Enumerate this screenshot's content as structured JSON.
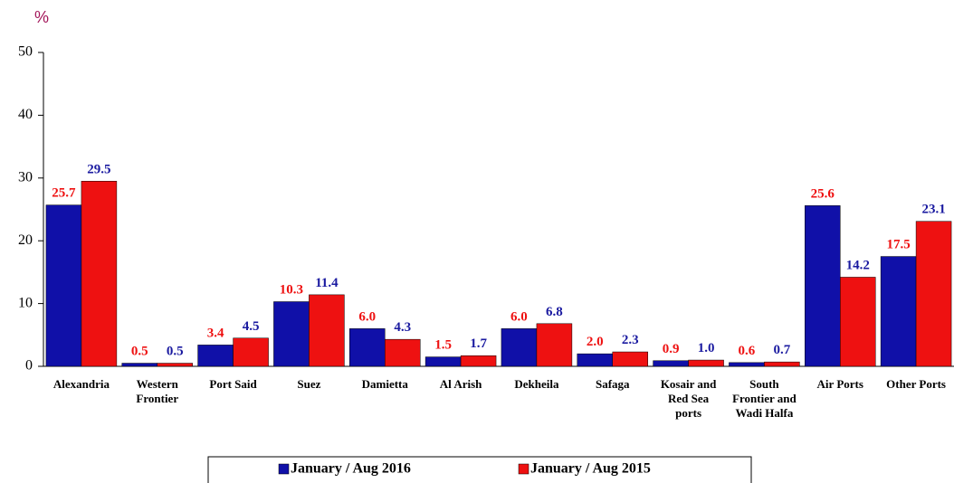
{
  "chart_data": {
    "type": "bar",
    "y_label": "%",
    "categories": [
      "Alexandria",
      "Western Frontier",
      "Port Said",
      "Suez",
      "Damietta",
      "Al Arish",
      "Dekheila",
      "Safaga",
      "Kosair and Red Sea ports",
      "South Frontier and Wadi Halfa",
      "Air Ports",
      "Other Ports"
    ],
    "series": [
      {
        "name": "January / Aug 2016",
        "color": "#1010a8",
        "label_color": "#ee1111",
        "values": [
          25.7,
          0.5,
          3.4,
          10.3,
          6.0,
          1.5,
          6.0,
          2.0,
          0.9,
          0.6,
          25.6,
          17.5
        ],
        "value_labels": [
          "25.7",
          "0.5",
          "3.4",
          "10.3",
          "6.0",
          "1.5",
          "6.0",
          "2.0",
          "0.9",
          "0.6",
          "25.6",
          "17.5"
        ]
      },
      {
        "name": "January / Aug 2015",
        "color": "#ee1111",
        "label_color": "#1a1aa0",
        "values": [
          29.5,
          0.5,
          4.5,
          11.4,
          4.3,
          1.7,
          6.8,
          2.3,
          1.0,
          0.7,
          14.2,
          23.1
        ],
        "value_labels": [
          "29.5",
          "0.5",
          "4.5",
          "11.4",
          "4.3",
          "1.7",
          "6.8",
          "2.3",
          "1.0",
          "0.7",
          "14.2",
          "23.1"
        ]
      }
    ],
    "ylim": [
      0,
      50
    ],
    "yticks": [
      0,
      10,
      20,
      30,
      40,
      50
    ],
    "legend": "bottom"
  }
}
